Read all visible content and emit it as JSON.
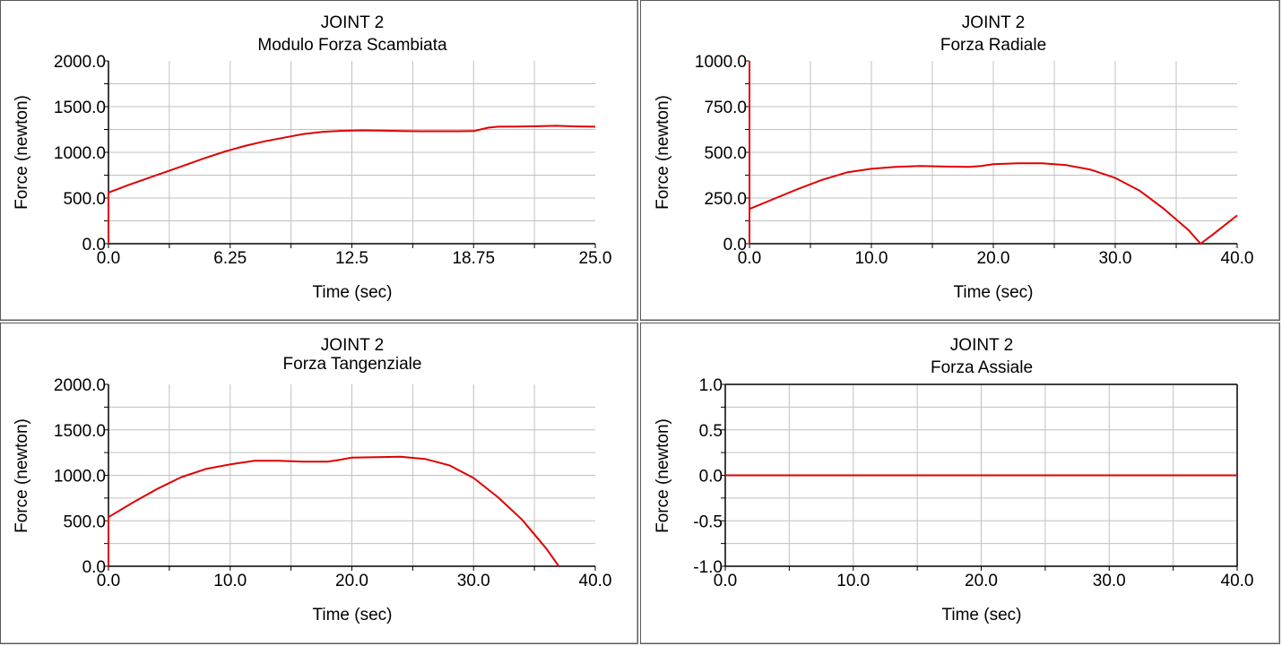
{
  "colors": {
    "line": "#e00000",
    "grid": "#c0c0c0",
    "frame": "#000000",
    "background": "#ffffff"
  },
  "chart_data": [
    {
      "type": "line",
      "title": "JOINT 2",
      "subtitle": "Modulo Forza Scambiata",
      "xlabel": "Time (sec)",
      "ylabel": "Force (newton)",
      "xlim": [
        0,
        25
      ],
      "ylim": [
        0,
        2000
      ],
      "xticks": [
        0,
        6.25,
        12.5,
        18.75,
        25
      ],
      "xtick_labels": [
        "0.0",
        "6.25",
        "12.5",
        "18.75",
        "25.0"
      ],
      "yticks": [
        0,
        500,
        1000,
        1500,
        2000
      ],
      "ytick_labels": [
        "0.0",
        "500.0",
        "1000.0",
        "1500.0",
        "2000.0"
      ],
      "grid": true,
      "series": [
        {
          "color": "#e00000",
          "x": [
            0,
            0,
            1,
            2,
            3,
            4,
            5,
            6,
            7,
            8,
            9,
            10,
            11,
            12,
            13,
            14,
            15,
            16,
            17,
            18,
            18.75,
            19.5,
            20,
            21,
            22,
            23,
            24,
            25
          ],
          "y": [
            0,
            560,
            640,
            715,
            790,
            865,
            940,
            1010,
            1070,
            1120,
            1160,
            1200,
            1225,
            1235,
            1240,
            1238,
            1232,
            1230,
            1230,
            1230,
            1232,
            1270,
            1280,
            1282,
            1285,
            1290,
            1283,
            1280
          ]
        }
      ]
    },
    {
      "type": "line",
      "title": "JOINT 2",
      "subtitle": "Forza Radiale",
      "xlabel": "Time (sec)",
      "ylabel": "Force (newton)",
      "xlim": [
        0,
        40
      ],
      "ylim": [
        0,
        1000
      ],
      "xticks": [
        0,
        10,
        20,
        30,
        40
      ],
      "xtick_labels": [
        "0.0",
        "10.0",
        "20.0",
        "30.0",
        "40.0"
      ],
      "yticks": [
        0,
        250,
        500,
        750,
        1000
      ],
      "ytick_labels": [
        "0.0",
        "250.0",
        "500.0",
        "750.0",
        "1000.0"
      ],
      "grid": true,
      "series": [
        {
          "color": "#e00000",
          "x": [
            0,
            0,
            0,
            2,
            4,
            6,
            8,
            10,
            12,
            14,
            16,
            18,
            19,
            20,
            22,
            24,
            26,
            28,
            30,
            32,
            34,
            36,
            37,
            38,
            40
          ],
          "y": [
            1000,
            0,
            190,
            245,
            300,
            350,
            390,
            410,
            420,
            425,
            422,
            420,
            425,
            435,
            440,
            440,
            430,
            405,
            360,
            290,
            190,
            75,
            0,
            50,
            155
          ]
        }
      ]
    },
    {
      "type": "line",
      "title": "JOINT 2",
      "subtitle": "Forza Tangenziale",
      "xlabel": "Time (sec)",
      "ylabel": "Force (newton)",
      "xlim": [
        0,
        40
      ],
      "ylim": [
        0,
        2000
      ],
      "xticks": [
        0,
        10,
        20,
        30,
        40
      ],
      "xtick_labels": [
        "0.0",
        "10.0",
        "20.0",
        "30.0",
        "40.0"
      ],
      "yticks": [
        0,
        500,
        1000,
        1500,
        2000
      ],
      "ytick_labels": [
        "0.0",
        "500.0",
        "1000.0",
        "1500.0",
        "2000.0"
      ],
      "grid": true,
      "series": [
        {
          "color": "#e00000",
          "x": [
            0,
            0,
            2,
            4,
            6,
            8,
            10,
            12,
            14,
            16,
            18,
            19,
            20,
            22,
            24,
            26,
            28,
            30,
            32,
            34,
            36,
            37
          ],
          "y": [
            0,
            540,
            700,
            850,
            980,
            1070,
            1120,
            1160,
            1160,
            1150,
            1150,
            1170,
            1195,
            1200,
            1205,
            1180,
            1110,
            970,
            760,
            510,
            190,
            0
          ]
        }
      ]
    },
    {
      "type": "line",
      "title": "JOINT 2",
      "subtitle": "Forza Assiale",
      "xlabel": "Time (sec)",
      "ylabel": "Force (newton)",
      "xlim": [
        0,
        40
      ],
      "ylim": [
        -1,
        1
      ],
      "xticks": [
        0,
        10,
        20,
        30,
        40
      ],
      "xtick_labels": [
        "0.0",
        "10.0",
        "20.0",
        "30.0",
        "40.0"
      ],
      "yticks": [
        -1,
        -0.5,
        0,
        0.5,
        1
      ],
      "ytick_labels": [
        "-1.0",
        "-0.5",
        "0.0",
        "0.5",
        "1.0"
      ],
      "grid": true,
      "series": [
        {
          "color": "#e00000",
          "x": [
            0,
            40
          ],
          "y": [
            0,
            0
          ]
        }
      ]
    }
  ]
}
